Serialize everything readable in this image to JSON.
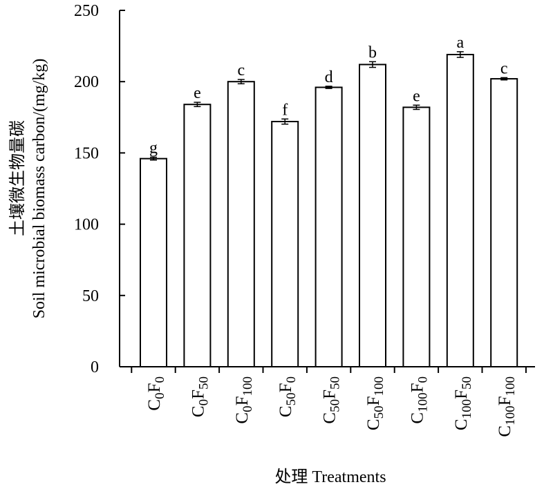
{
  "chart_data": {
    "type": "bar",
    "categories": [
      {
        "c": "0",
        "f": "0"
      },
      {
        "c": "0",
        "f": "50"
      },
      {
        "c": "0",
        "f": "100"
      },
      {
        "c": "50",
        "f": "0"
      },
      {
        "c": "50",
        "f": "50"
      },
      {
        "c": "50",
        "f": "100"
      },
      {
        "c": "100",
        "f": "0"
      },
      {
        "c": "100",
        "f": "50"
      },
      {
        "c": "100",
        "f": "100"
      }
    ],
    "values": [
      146,
      184,
      200,
      172,
      196,
      212,
      182,
      219,
      202
    ],
    "errors": [
      1.0,
      1.5,
      1.5,
      1.8,
      0.8,
      2.0,
      1.5,
      2.0,
      0.8
    ],
    "significance_letters": [
      "g",
      "e",
      "c",
      "f",
      "d",
      "b",
      "e",
      "a",
      "c"
    ],
    "ylabel_cn": "土壤微生物量碳",
    "ylabel_en": "Soil microbial biomass carbon/(mg/kg)",
    "xlabel": "处理 Treatments",
    "ylim": [
      0,
      250
    ],
    "yticks": [
      0,
      50,
      100,
      150,
      200,
      250
    ],
    "bar_fill": "#ffffff",
    "bar_stroke": "#000000",
    "grid": false,
    "legend": "none"
  }
}
